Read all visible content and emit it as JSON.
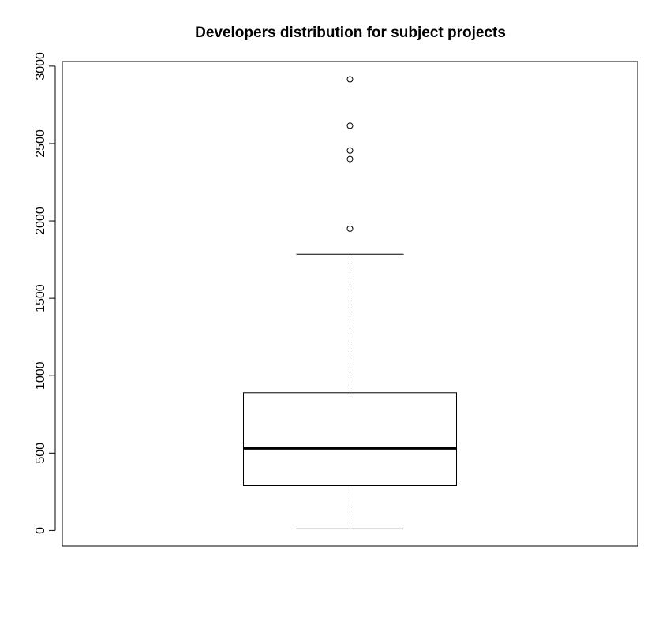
{
  "chart_data": {
    "type": "boxplot",
    "title": "Developers distribution for subject projects",
    "xlabel": "",
    "ylabel": "",
    "ylim": [
      -100,
      3030
    ],
    "yticks": [
      0,
      500,
      1000,
      1500,
      2000,
      2500,
      3000
    ],
    "ytick_labels": [
      "0",
      "500",
      "1000",
      "1500",
      "2000",
      "2500",
      "3000"
    ],
    "series": [
      {
        "whisker_low": 10,
        "q1": 290,
        "median": 530,
        "q3": 890,
        "whisker_high": 1785,
        "outliers": [
          1950,
          2400,
          2455,
          2615,
          2915
        ]
      }
    ],
    "grid": false,
    "legend": "none"
  },
  "colors": {
    "stroke": "#000000",
    "background": "#ffffff"
  }
}
